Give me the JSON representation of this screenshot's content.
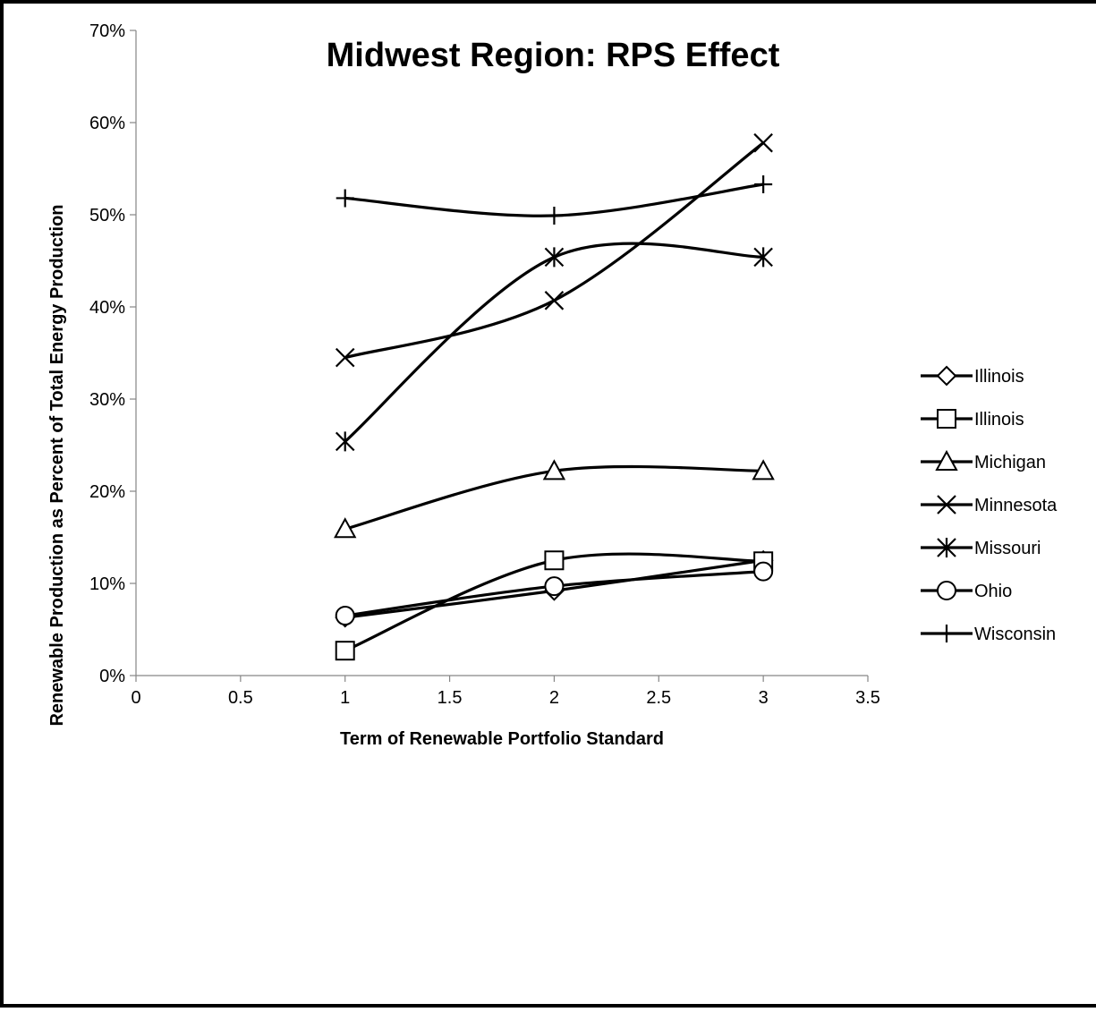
{
  "chart_data": {
    "type": "line",
    "title": "Midwest Region: RPS Effect",
    "xlabel": "Term of Renewable Portfolio Standard",
    "ylabel": "Renewable Production as Percent of Total Energy Production",
    "xlim": [
      0,
      3.5
    ],
    "ylim": [
      0,
      0.7
    ],
    "x_ticks": [
      0,
      0.5,
      1,
      1.5,
      2,
      2.5,
      3,
      3.5
    ],
    "x_tick_labels": [
      "0",
      "0.5",
      "1",
      "1.5",
      "2",
      "2.5",
      "3",
      "3.5"
    ],
    "y_ticks": [
      0,
      0.1,
      0.2,
      0.3,
      0.4,
      0.5,
      0.6,
      0.7
    ],
    "y_tick_labels": [
      "0%",
      "10%",
      "20%",
      "30%",
      "40%",
      "50%",
      "60%",
      "70%"
    ],
    "grid": false,
    "legend_position": "right",
    "smoothed": true,
    "line_color": "#000000",
    "series": [
      {
        "name": "Illinois",
        "marker": "diamond",
        "x": [
          1,
          2,
          3
        ],
        "y": [
          0.063,
          0.092,
          0.125
        ]
      },
      {
        "name": "Illinois",
        "marker": "square",
        "x": [
          1,
          2,
          3
        ],
        "y": [
          0.027,
          0.125,
          0.124
        ]
      },
      {
        "name": "Michigan",
        "marker": "triangle",
        "x": [
          1,
          2,
          3
        ],
        "y": [
          0.159,
          0.222,
          0.222
        ]
      },
      {
        "name": "Minnesota",
        "marker": "x",
        "x": [
          1,
          2,
          3
        ],
        "y": [
          0.345,
          0.407,
          0.578
        ]
      },
      {
        "name": "Missouri",
        "marker": "asterisk",
        "x": [
          1,
          2,
          3
        ],
        "y": [
          0.254,
          0.454,
          0.454
        ]
      },
      {
        "name": "Ohio",
        "marker": "circle",
        "x": [
          1,
          2,
          3
        ],
        "y": [
          0.065,
          0.097,
          0.113
        ]
      },
      {
        "name": "Wisconsin",
        "marker": "plus",
        "x": [
          1,
          2,
          3
        ],
        "y": [
          0.518,
          0.499,
          0.533
        ]
      }
    ]
  }
}
